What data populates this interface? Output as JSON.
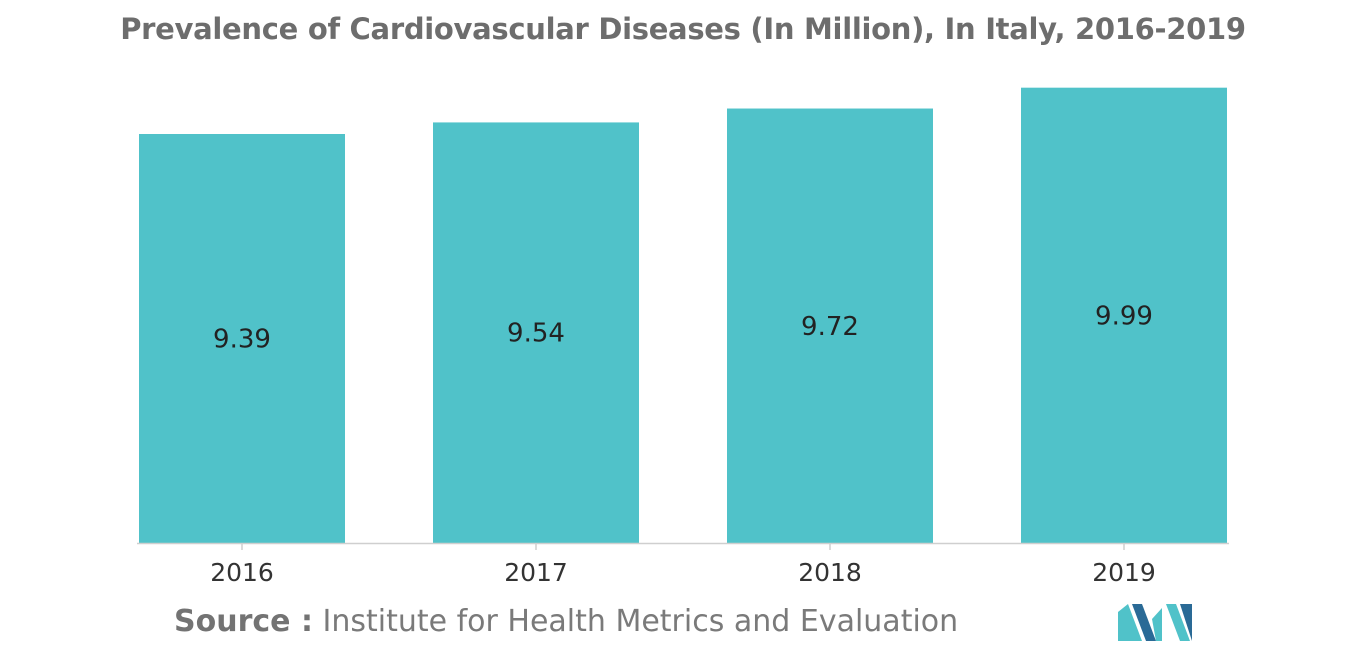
{
  "chart_data": {
    "type": "bar",
    "title": "Prevalence of Cardiovascular Diseases (In Million), In Italy, 2016-2019",
    "categories": [
      "2016",
      "2017",
      "2018",
      "2019"
    ],
    "values": [
      9.39,
      9.54,
      9.72,
      9.99
    ],
    "value_labels": [
      "9.39",
      "9.54",
      "9.72",
      "9.99"
    ],
    "xlabel": "",
    "ylabel": "",
    "grid": false,
    "legend": "none",
    "bar_color": "#50c2c9",
    "axis_color": "#cfcfcf"
  },
  "source": {
    "label": "Source :",
    "text": "Institute for Health Metrics and Evaluation"
  },
  "logo": {
    "icon": "mordor-intelligence-logo-icon",
    "colors": [
      "#2a6a96",
      "#50c2c9"
    ]
  }
}
